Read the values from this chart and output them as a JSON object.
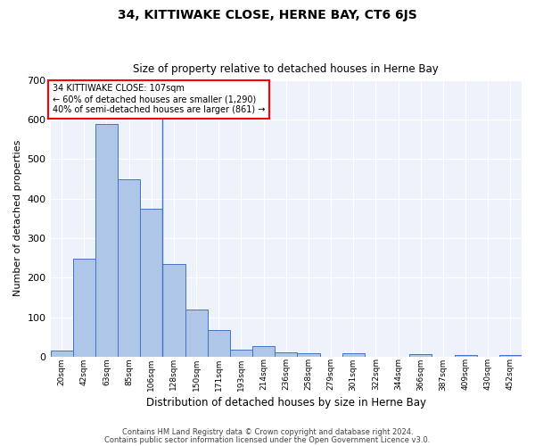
{
  "title": "34, KITTIWAKE CLOSE, HERNE BAY, CT6 6JS",
  "subtitle": "Size of property relative to detached houses in Herne Bay",
  "xlabel": "Distribution of detached houses by size in Herne Bay",
  "ylabel": "Number of detached properties",
  "categories": [
    "20sqm",
    "42sqm",
    "63sqm",
    "85sqm",
    "106sqm",
    "128sqm",
    "150sqm",
    "171sqm",
    "193sqm",
    "214sqm",
    "236sqm",
    "258sqm",
    "279sqm",
    "301sqm",
    "322sqm",
    "344sqm",
    "366sqm",
    "387sqm",
    "409sqm",
    "430sqm",
    "452sqm"
  ],
  "values": [
    15,
    248,
    590,
    450,
    375,
    235,
    120,
    68,
    17,
    27,
    11,
    9,
    0,
    8,
    0,
    0,
    7,
    0,
    5,
    0,
    5
  ],
  "bar_color": "#aec6e8",
  "bar_edge_color": "#4472c4",
  "background_color": "#eef2fb",
  "ylim": [
    0,
    700
  ],
  "yticks": [
    0,
    100,
    200,
    300,
    400,
    500,
    600,
    700
  ],
  "vline_x_index": 4,
  "annotation_line1": "34 KITTIWAKE CLOSE: 107sqm",
  "annotation_line2": "← 60% of detached houses are smaller (1,290)",
  "annotation_line3": "40% of semi-detached houses are larger (861) →",
  "annotation_box_color": "white",
  "annotation_box_edge_color": "red",
  "footer1": "Contains HM Land Registry data © Crown copyright and database right 2024.",
  "footer2": "Contains public sector information licensed under the Open Government Licence v3.0."
}
